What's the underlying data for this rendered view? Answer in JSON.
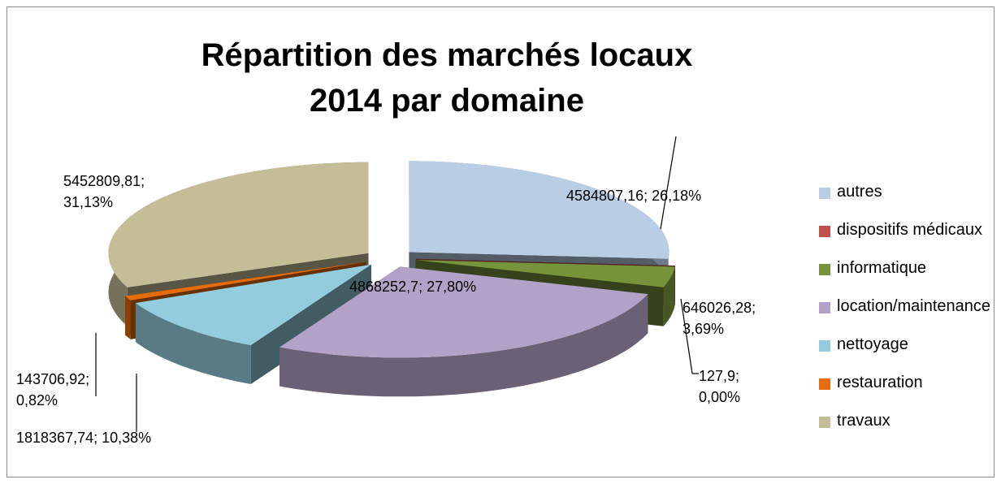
{
  "chart_data": {
    "type": "pie3d",
    "title": "Répartition des marchés locaux 2014 par domaine",
    "categories": [
      "autres",
      "dispositifs médicaux",
      "informatique",
      "location/maintenance",
      "nettoyage",
      "restauration",
      "travaux"
    ],
    "values": [
      4584807.16,
      127.9,
      646026.28,
      4868252.7,
      1818367.74,
      143706.92,
      5452809.81
    ],
    "value_labels": [
      "4584807,16; 26,18%",
      "127,9; 0,00%",
      "646026,28; 3,69%",
      "4868252,7; 27,80%",
      "1818367,74; 10,38%",
      "143706,92; 0,82%",
      "5452809,81; 31,13%"
    ],
    "colors": [
      "#b9cde5",
      "#c0504d",
      "#77933c",
      "#b3a2c7",
      "#93cddd",
      "#e46c0a",
      "#c4bd97"
    ],
    "legend": "right"
  }
}
